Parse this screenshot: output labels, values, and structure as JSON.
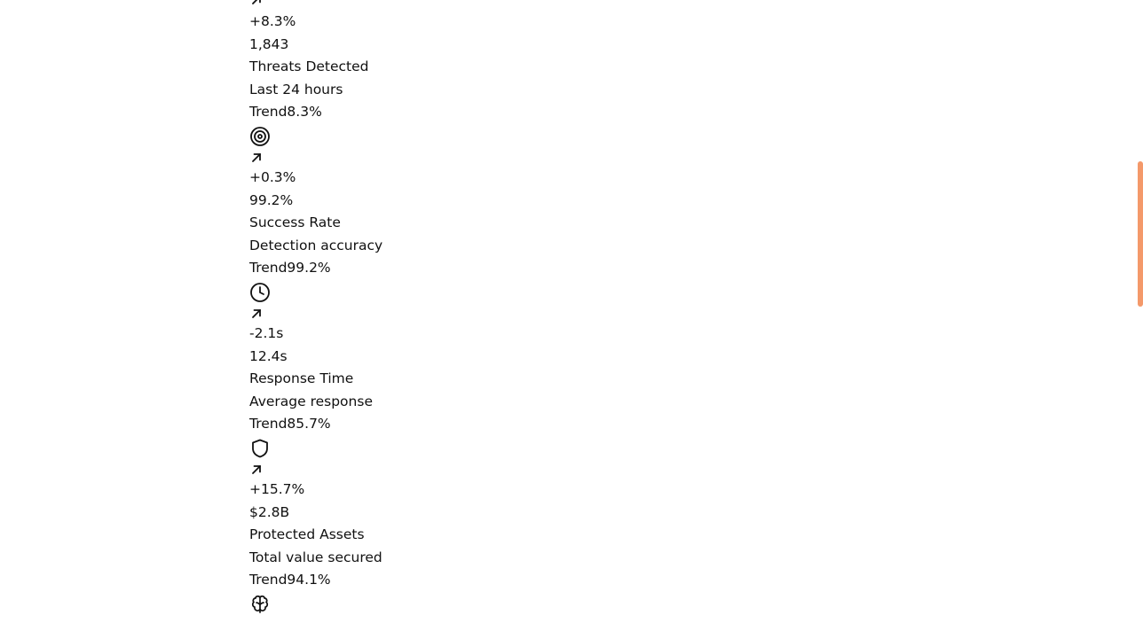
{
  "accent_color": "#f4996a",
  "metrics": [
    {
      "trend_icon": "arrow-up-right-icon",
      "change": "+8.3%",
      "value": "1,843",
      "label": "Threats Detected",
      "sublabel": "Last 24 hours",
      "trend_label": "Trend",
      "trend_value": "8.3%"
    },
    {
      "icon": "target-icon",
      "trend_icon": "arrow-up-right-icon",
      "change": "+0.3%",
      "value": "99.2%",
      "label": "Success Rate",
      "sublabel": "Detection accuracy",
      "trend_label": "Trend",
      "trend_value": "99.2%"
    },
    {
      "icon": "clock-icon",
      "trend_icon": "arrow-up-right-icon",
      "change": "-2.1s",
      "value": "12.4s",
      "label": "Response Time",
      "sublabel": "Average response",
      "trend_label": "Trend",
      "trend_value": "85.7%"
    },
    {
      "icon": "shield-icon",
      "trend_icon": "arrow-up-right-icon",
      "change": "+15.7%",
      "value": "$2.8B",
      "label": "Protected Assets",
      "sublabel": "Total value secured",
      "trend_label": "Trend",
      "trend_value": "94.1%"
    },
    {
      "icon": "brain-icon"
    }
  ]
}
